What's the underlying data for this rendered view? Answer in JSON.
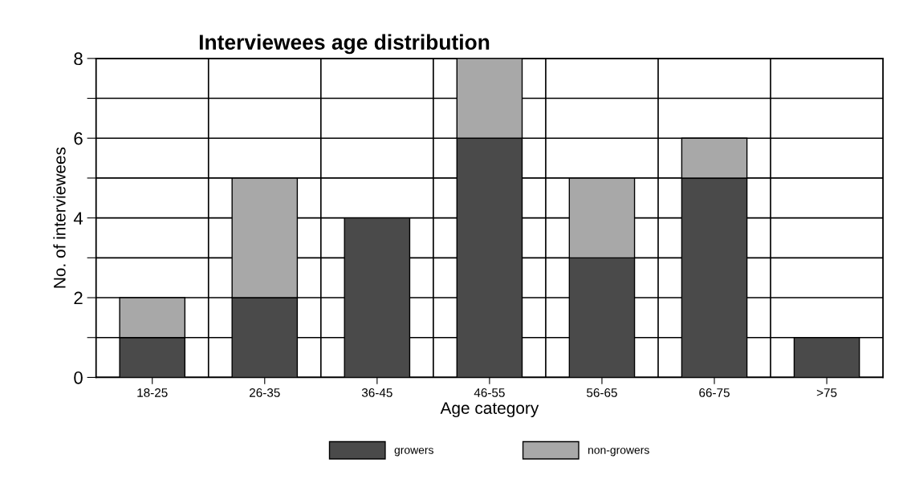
{
  "chart_data": {
    "type": "bar",
    "title": "Interviewees age distribution",
    "xlabel": "Age category",
    "ylabel": "No. of interviewees",
    "categories": [
      "18-25",
      "26-35",
      "36-45",
      "46-55",
      "56-65",
      "66-75",
      ">75"
    ],
    "stacked": true,
    "series": [
      {
        "name": "growers",
        "color": "#4a4a4a",
        "values": [
          1,
          2,
          4,
          6,
          3,
          5,
          1
        ]
      },
      {
        "name": "non-growers",
        "color": "#a8a8a8",
        "values": [
          1,
          3,
          0,
          2,
          2,
          1,
          0
        ]
      }
    ],
    "ylim": [
      0,
      8
    ],
    "yticks": [
      0,
      {
        "value": 1,
        "label": null
      },
      2,
      {
        "value": 3,
        "label": null
      },
      4,
      {
        "value": 5,
        "label": null
      },
      6,
      {
        "value": 7,
        "label": null
      },
      8
    ],
    "grid": true,
    "legend": "bottom"
  }
}
